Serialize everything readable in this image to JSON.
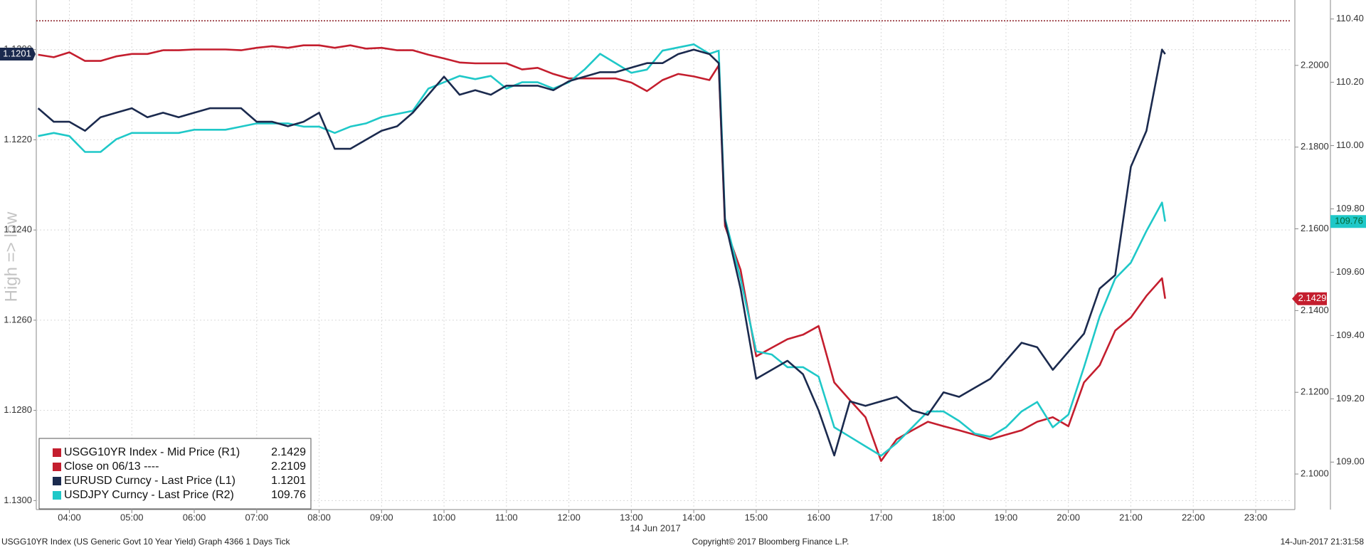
{
  "chart_data": {
    "type": "line",
    "y_label": "High => low",
    "x_label": "14 Jun 2017",
    "grid": true,
    "x": [
      3.5,
      3.75,
      4,
      4.25,
      4.5,
      4.75,
      5,
      5.25,
      5.5,
      5.75,
      6,
      6.25,
      6.5,
      6.75,
      7,
      7.25,
      7.5,
      7.75,
      8,
      8.25,
      8.5,
      8.75,
      9,
      9.25,
      9.5,
      9.75,
      10,
      10.25,
      10.5,
      10.75,
      11,
      11.25,
      11.5,
      11.75,
      12,
      12.25,
      12.5,
      12.75,
      13,
      13.25,
      13.5,
      13.75,
      14,
      14.25,
      14.4,
      14.5,
      14.75,
      15,
      15.25,
      15.5,
      15.75,
      16,
      16.25,
      16.5,
      16.75,
      17,
      17.25,
      17.5,
      17.75,
      18,
      18.25,
      18.5,
      18.75,
      19,
      19.25,
      19.5,
      19.75,
      20,
      20.25,
      20.5,
      20.75,
      21,
      21.25,
      21.5,
      21.55
    ],
    "xlim": [
      3.47,
      23.57
    ],
    "xticks": [
      {
        "value": 4,
        "label": "04:00"
      },
      {
        "value": 5,
        "label": "05:00"
      },
      {
        "value": 6,
        "label": "06:00"
      },
      {
        "value": 7,
        "label": "07:00"
      },
      {
        "value": 8,
        "label": "08:00"
      },
      {
        "value": 9,
        "label": "09:00"
      },
      {
        "value": 10,
        "label": "10:00"
      },
      {
        "value": 11,
        "label": "11:00"
      },
      {
        "value": 12,
        "label": "12:00"
      },
      {
        "value": 13,
        "label": "13:00"
      },
      {
        "value": 14,
        "label": "14:00"
      },
      {
        "value": 15,
        "label": "15:00"
      },
      {
        "value": 16,
        "label": "16:00"
      },
      {
        "value": 17,
        "label": "17:00"
      },
      {
        "value": 18,
        "label": "18:00"
      },
      {
        "value": 19,
        "label": "19:00"
      },
      {
        "value": 20,
        "label": "20:00"
      },
      {
        "value": 21,
        "label": "21:00"
      },
      {
        "value": 22,
        "label": "22:00"
      },
      {
        "value": 23,
        "label": "23:00"
      }
    ],
    "ylim": [
      1.1302,
      1.1189
    ],
    "yticks": [
      {
        "value": 1.12,
        "label": "1.1200"
      },
      {
        "value": 1.122,
        "label": "1.1220"
      },
      {
        "value": 1.124,
        "label": "1.1240"
      },
      {
        "value": 1.126,
        "label": "1.1260"
      },
      {
        "value": 1.128,
        "label": "1.1280"
      },
      {
        "value": 1.13,
        "label": "1.1300"
      }
    ],
    "y2lim": [
      2.0913,
      2.216
    ],
    "y2ticks": [
      {
        "value": 2.1,
        "label": "2.1000"
      },
      {
        "value": 2.12,
        "label": "2.1200"
      },
      {
        "value": 2.14,
        "label": "2.1400"
      },
      {
        "value": 2.16,
        "label": "2.1600"
      },
      {
        "value": 2.18,
        "label": "2.1800"
      },
      {
        "value": 2.2,
        "label": "2.2000"
      }
    ],
    "y3lim": [
      108.85,
      110.46
    ],
    "y3ticks": [
      {
        "value": 109,
        "label": "109.00"
      },
      {
        "value": 109.2,
        "label": "109.20"
      },
      {
        "value": 109.4,
        "label": "109.40"
      },
      {
        "value": 109.6,
        "label": "109.60"
      },
      {
        "value": 109.8,
        "label": "109.80"
      },
      {
        "value": 110,
        "label": "110.00"
      },
      {
        "value": 110.2,
        "label": "110.20"
      },
      {
        "value": 110.4,
        "label": "110.40"
      }
    ],
    "series": [
      {
        "name": "USGG10YR Index - Mid Price (R1)",
        "color": "#c41e2e",
        "axis": "y2",
        "values": [
          2.2026,
          2.202,
          2.2032,
          2.2011,
          2.2011,
          2.2022,
          2.2028,
          2.2028,
          2.2037,
          2.2037,
          2.2039,
          2.2039,
          2.2039,
          2.2037,
          2.2043,
          2.2047,
          2.2043,
          2.2049,
          2.2049,
          2.2043,
          2.2049,
          2.2041,
          2.2043,
          2.2037,
          2.2037,
          2.2026,
          2.2017,
          2.2007,
          2.2005,
          2.2005,
          2.2005,
          2.199,
          2.1994,
          2.1979,
          2.1968,
          2.1968,
          2.1968,
          2.1968,
          2.1958,
          2.1937,
          2.1964,
          2.1979,
          2.1973,
          2.1964,
          2.2,
          2.1607,
          2.15,
          2.1288,
          2.1309,
          2.133,
          2.1341,
          2.1362,
          2.1224,
          2.1181,
          2.1139,
          2.1032,
          2.1085,
          2.1107,
          2.1128,
          2.1117,
          2.1107,
          2.1096,
          2.1085,
          2.1096,
          2.1107,
          2.1128,
          2.1139,
          2.1117,
          2.1224,
          2.1266,
          2.1351,
          2.1383,
          2.1436,
          2.1479,
          2.1429
        ]
      },
      {
        "name": "EURUSD Curncy - Last Price (L1)",
        "color": "#1b2a4e",
        "axis": "y",
        "values": [
          1.1213,
          1.1216,
          1.1216,
          1.1218,
          1.1215,
          1.1214,
          1.1213,
          1.1215,
          1.1214,
          1.1215,
          1.1214,
          1.1213,
          1.1213,
          1.1213,
          1.1216,
          1.1216,
          1.1217,
          1.1216,
          1.1214,
          1.1222,
          1.1222,
          1.122,
          1.1218,
          1.1217,
          1.1214,
          1.121,
          1.1206,
          1.121,
          1.1209,
          1.121,
          1.1208,
          1.1208,
          1.1208,
          1.1209,
          1.1207,
          1.1206,
          1.1205,
          1.1205,
          1.1204,
          1.1203,
          1.1203,
          1.1201,
          1.12,
          1.1201,
          1.1203,
          1.1238,
          1.1253,
          1.1273,
          1.1271,
          1.1269,
          1.1272,
          1.128,
          1.129,
          1.1278,
          1.1279,
          1.1278,
          1.1277,
          1.128,
          1.1281,
          1.1276,
          1.1277,
          1.1275,
          1.1273,
          1.1269,
          1.1265,
          1.1266,
          1.1271,
          1.1267,
          1.1263,
          1.1253,
          1.125,
          1.1226,
          1.1218,
          1.12,
          1.1201
        ]
      },
      {
        "name": "USDJPY Curncy - Last Price (R2)",
        "color": "#1fc8c8",
        "axis": "y3",
        "values": [
          110.03,
          110.04,
          110.03,
          109.98,
          109.98,
          110.02,
          110.04,
          110.04,
          110.04,
          110.04,
          110.05,
          110.05,
          110.05,
          110.06,
          110.07,
          110.07,
          110.07,
          110.06,
          110.06,
          110.04,
          110.06,
          110.07,
          110.09,
          110.1,
          110.11,
          110.18,
          110.2,
          110.22,
          110.21,
          110.22,
          110.18,
          110.2,
          110.2,
          110.18,
          110.2,
          110.24,
          110.29,
          110.26,
          110.23,
          110.24,
          110.3,
          110.31,
          110.32,
          110.29,
          110.3,
          109.77,
          109.58,
          109.35,
          109.34,
          109.3,
          109.3,
          109.27,
          109.11,
          109.08,
          109.05,
          109.02,
          109.06,
          109.11,
          109.16,
          109.16,
          109.13,
          109.09,
          109.08,
          109.11,
          109.16,
          109.19,
          109.11,
          109.15,
          109.3,
          109.46,
          109.58,
          109.63,
          109.73,
          109.82,
          109.76
        ]
      }
    ],
    "reference_lines": [
      {
        "name": "Close on 06/13 ----",
        "value": 2.2109,
        "axis": "y2",
        "color": "#8a1c24"
      }
    ]
  },
  "footer": {
    "left": "USGG10YR Index (US Generic Govt 10 Year Yield) Graph 4366 1 Days  Tick",
    "center": "Copyright© 2017 Bloomberg Finance L.P.",
    "right": "14-Jun-2017 21:31:58"
  }
}
